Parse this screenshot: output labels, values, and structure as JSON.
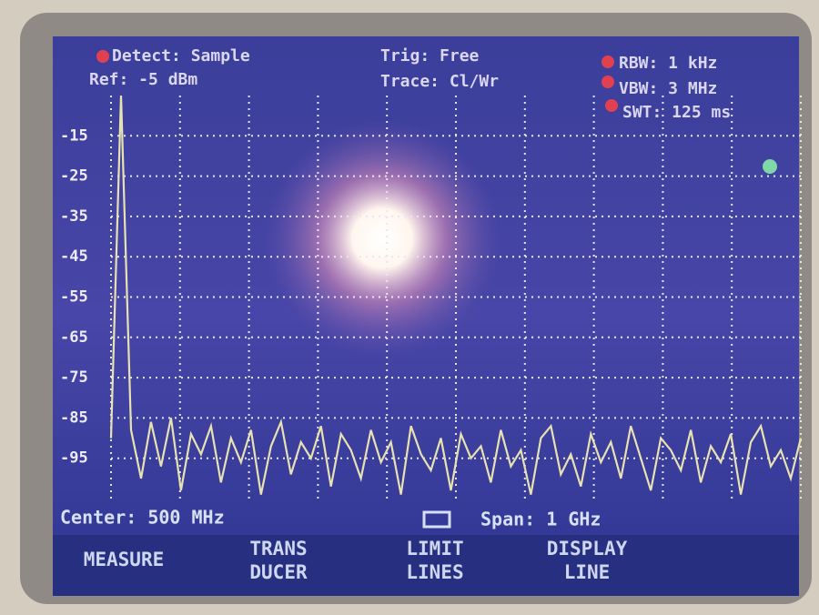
{
  "header": {
    "detect": "Detect: Sample",
    "ref": "Ref: -5 dBm",
    "trig": "Trig: Free",
    "trace": "Trace: Cl/Wr",
    "rbw": "RBW: 1 kHz",
    "vbw": "VBW: 3 MHz",
    "swt": "SWT: 125 ms"
  },
  "footer": {
    "center": "Center: 500 MHz",
    "span": "Span: 1 GHz"
  },
  "softkeys": [
    [
      "MEASURE"
    ],
    [
      "TRANS",
      "DUCER"
    ],
    [
      "LIMIT",
      "LINES"
    ],
    [
      "DISPLAY",
      "LINE"
    ]
  ],
  "chart_data": {
    "type": "line",
    "color": "#e8e2b0",
    "grid": true,
    "ylim": [
      -105,
      -5
    ],
    "yticks": [
      -15,
      -25,
      -35,
      -45,
      -55,
      -65,
      -75,
      -85,
      -95
    ],
    "values": [
      -90,
      -5,
      -88,
      -100,
      -86,
      -97,
      -85,
      -103,
      -89,
      -94,
      -87,
      -101,
      -90,
      -96,
      -88,
      -104,
      -92,
      -86,
      -99,
      -91,
      -95,
      -87,
      -102,
      -89,
      -93,
      -100,
      -88,
      -96,
      -91,
      -104,
      -87,
      -94,
      -98,
      -90,
      -103,
      -89,
      -95,
      -92,
      -101,
      -88,
      -97,
      -93,
      -104,
      -90,
      -87,
      -99,
      -94,
      -102,
      -89,
      -96,
      -91,
      -100,
      -87,
      -95,
      -103,
      -90,
      -93,
      -98,
      -88,
      -101,
      -92,
      -96,
      -89,
      -104,
      -91,
      -87,
      -97,
      -93,
      -100,
      -90
    ]
  }
}
